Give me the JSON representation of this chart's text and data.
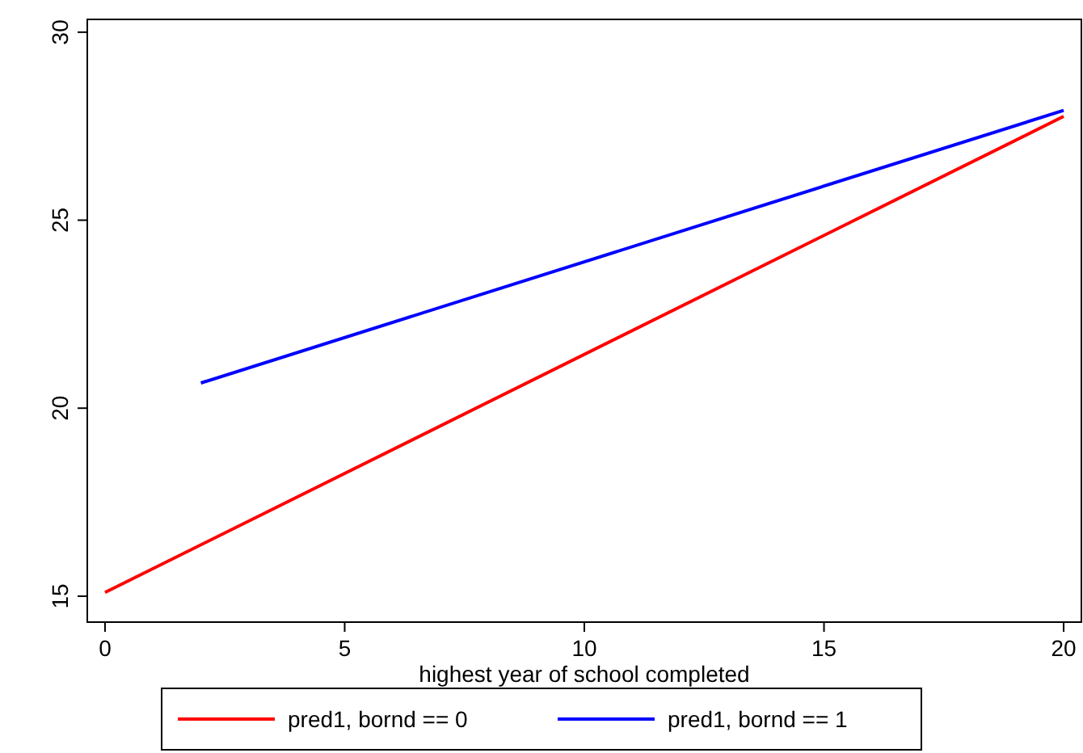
{
  "chart_data": {
    "type": "line",
    "xlabel": "highest year of school completed",
    "xlim": [
      -0.37,
      20.37
    ],
    "ylim": [
      14.31,
      30.34
    ],
    "xticks": [
      0,
      5,
      10,
      15,
      20
    ],
    "yticks": [
      15,
      20,
      25,
      30
    ],
    "grid": false,
    "legend": "bottom",
    "marker": "none",
    "line_style": "solid",
    "series": [
      {
        "name": "pred1, bornd == 0",
        "color": "#ff0000",
        "x": [
          0,
          20
        ],
        "values": [
          15.1,
          27.76
        ]
      },
      {
        "name": "pred1, bornd == 1",
        "color": "#0000ff",
        "x": [
          2,
          20
        ],
        "values": [
          20.67,
          27.92
        ]
      }
    ]
  }
}
